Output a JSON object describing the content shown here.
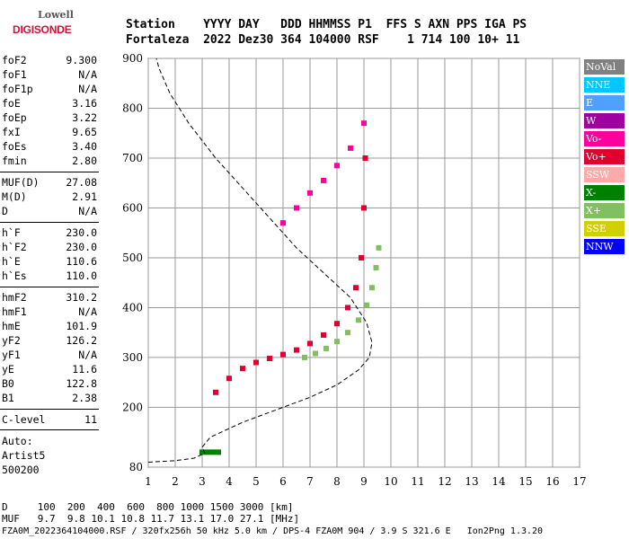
{
  "logo": {
    "line1": "Lowell",
    "line2": "DIGISONDE"
  },
  "header": {
    "row1": "Station    YYYY DAY   DDD HHMMSS P1  FFS S AXN PPS IGA PS",
    "row2": "Fortaleza  2022 Dez30 364 104000 RSF    1 714 100 10+ 11"
  },
  "params": [
    {
      "name": "foF2",
      "value": "9.300"
    },
    {
      "name": "foF1",
      "value": "N/A"
    },
    {
      "name": "foF1p",
      "value": "N/A"
    },
    {
      "name": "foE",
      "value": "3.16"
    },
    {
      "name": "foEp",
      "value": "3.22"
    },
    {
      "name": "fxI",
      "value": "9.65"
    },
    {
      "name": "foEs",
      "value": "3.40"
    },
    {
      "name": "fmin",
      "value": "2.80"
    },
    {
      "name": "MUF(D)",
      "value": "27.08"
    },
    {
      "name": "M(D)",
      "value": "2.91"
    },
    {
      "name": "D",
      "value": "N/A"
    },
    {
      "name": "h`F",
      "value": "230.0"
    },
    {
      "name": "h`F2",
      "value": "230.0"
    },
    {
      "name": "h`E",
      "value": "110.6"
    },
    {
      "name": "h`Es",
      "value": "110.0"
    },
    {
      "name": "hmF2",
      "value": "310.2"
    },
    {
      "name": "hmF1",
      "value": "N/A"
    },
    {
      "name": "hmE",
      "value": "101.9"
    },
    {
      "name": "yF2",
      "value": "126.2"
    },
    {
      "name": "yF1",
      "value": "N/A"
    },
    {
      "name": "yE",
      "value": "11.6"
    },
    {
      "name": "B0",
      "value": "122.8"
    },
    {
      "name": "B1",
      "value": "2.38"
    },
    {
      "name": "C-level",
      "value": "11"
    }
  ],
  "auto": {
    "line1": "Auto:",
    "line2": "Artist5",
    "line3": "500200"
  },
  "legend": [
    {
      "label": "NoVal",
      "color": "#808080"
    },
    {
      "label": "NNE",
      "color": "#00c8ff"
    },
    {
      "label": "E",
      "color": "#50a0ff"
    },
    {
      "label": "W",
      "color": "#a000a0"
    },
    {
      "label": "Vo-",
      "color": "#ff00a0"
    },
    {
      "label": "Vo+",
      "color": "#e00030"
    },
    {
      "label": "SSW",
      "color": "#ffaaaa"
    },
    {
      "label": "X-",
      "color": "#008000"
    },
    {
      "label": "X+",
      "color": "#80c060"
    },
    {
      "label": "SSE",
      "color": "#d0d000"
    },
    {
      "label": "NNW",
      "color": "#0000ff"
    }
  ],
  "footer": {
    "line1": "D     100  200  400  600  800 1000 1500 3000 [km]",
    "line2": "MUF   9.7  9.8 10.1 10.8 11.7 13.1 17.0 27.1 [MHz]",
    "line3": "FZA0M_2022364104000.RSF / 320fx256h 50 kHz 5.0 km / DPS-4 FZA0M 904 / 3.9 S 321.6 E   Ion2Png 1.3.20"
  },
  "chart_data": {
    "type": "scatter",
    "title": "",
    "xlabel": "",
    "ylabel": "",
    "xlim": [
      1,
      17
    ],
    "ylim": [
      80,
      900
    ],
    "xticks": [
      1,
      2,
      3,
      4,
      5,
      6,
      7,
      8,
      9,
      10,
      11,
      12,
      13,
      14,
      15,
      16,
      17
    ],
    "yticks": [
      80,
      200,
      300,
      400,
      500,
      600,
      700,
      800,
      900
    ],
    "grid": true,
    "series": [
      {
        "name": "Vo+",
        "color": "#e00030",
        "x": [
          3.5,
          4.0,
          4.5,
          5.0,
          5.5,
          6.0,
          6.5,
          7.0,
          7.5,
          8.0,
          8.4,
          8.7,
          8.9,
          9.0,
          9.05
        ],
        "y": [
          230,
          258,
          278,
          290,
          298,
          306,
          315,
          328,
          345,
          368,
          400,
          440,
          500,
          600,
          700
        ]
      },
      {
        "name": "X+",
        "color": "#80c060",
        "x": [
          6.8,
          7.2,
          7.6,
          8.0,
          8.4,
          8.8,
          9.1,
          9.3,
          9.45,
          9.55
        ],
        "y": [
          300,
          308,
          318,
          332,
          350,
          375,
          405,
          440,
          480,
          520
        ]
      },
      {
        "name": "Vo-",
        "color": "#ff00a0",
        "x": [
          6.0,
          6.5,
          7.0,
          7.5,
          8.0,
          8.5,
          9.0
        ],
        "y": [
          570,
          600,
          630,
          655,
          685,
          720,
          770
        ]
      },
      {
        "name": "X-",
        "color": "#008000",
        "x": [
          3.0,
          3.2,
          3.4,
          3.6
        ],
        "y": [
          110,
          110,
          110,
          110
        ]
      }
    ],
    "profile": {
      "x": [
        1.0,
        2.0,
        2.7,
        3.1,
        3.0,
        3.3,
        4.5,
        6.0,
        7.0,
        8.0,
        8.8,
        9.2,
        9.3,
        9.1,
        8.5,
        7.5,
        6.5,
        5.5,
        4.5,
        3.5,
        2.5,
        1.8,
        1.4,
        1.3
      ],
      "y": [
        90,
        93,
        98,
        108,
        120,
        140,
        170,
        200,
        220,
        245,
        275,
        300,
        330,
        370,
        420,
        470,
        520,
        580,
        640,
        700,
        770,
        830,
        880,
        900
      ]
    }
  }
}
